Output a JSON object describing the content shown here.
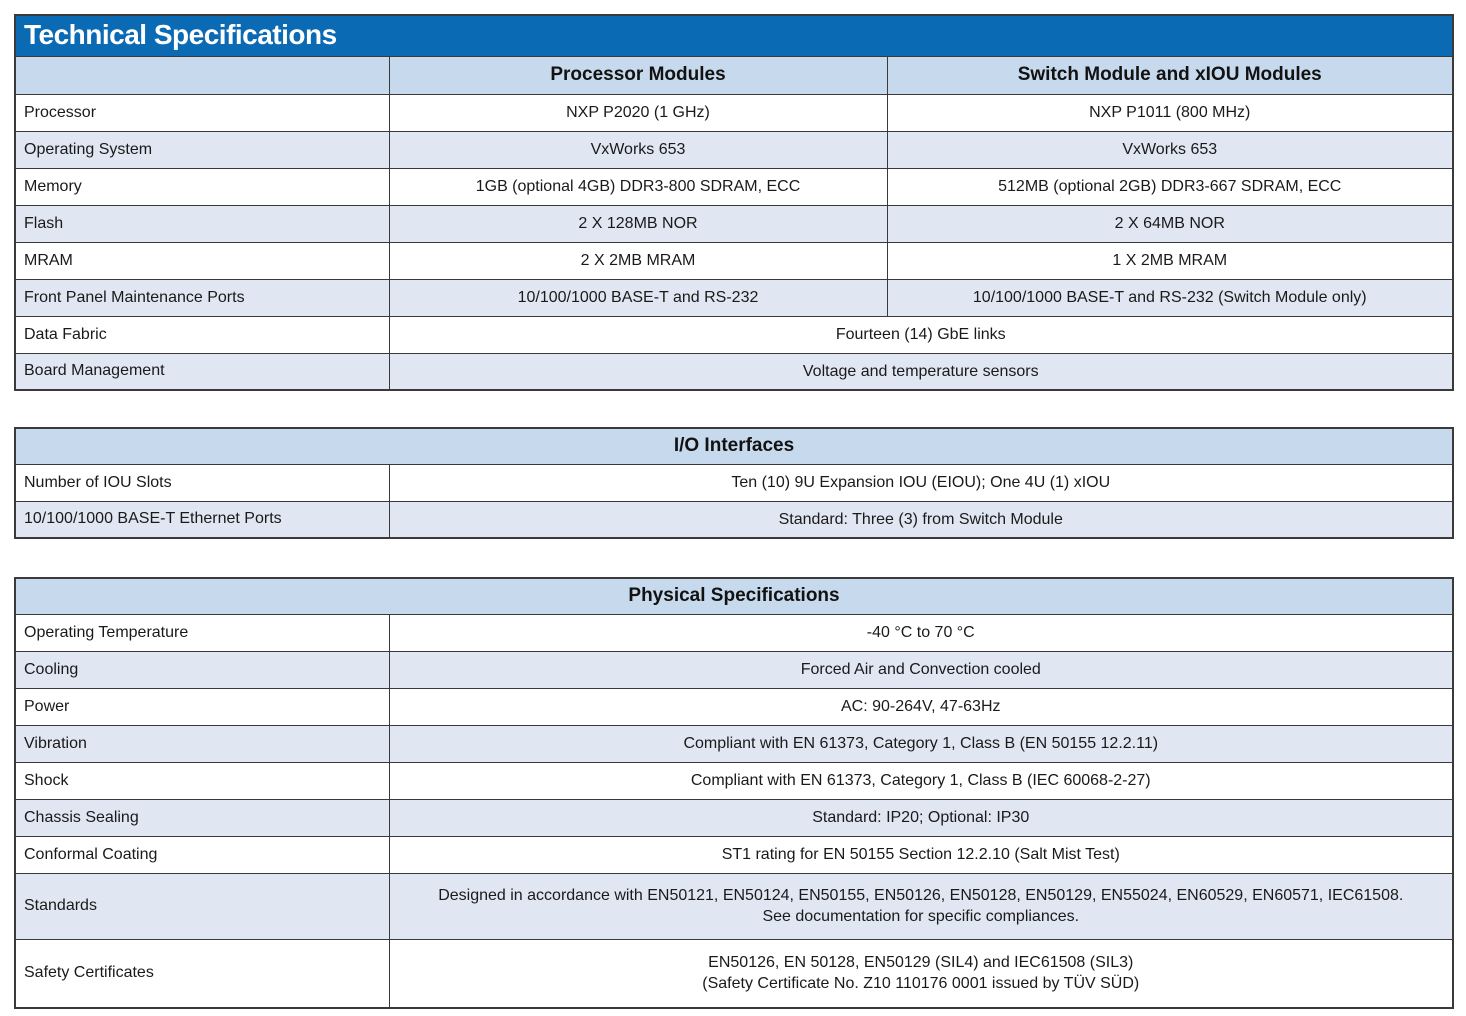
{
  "colors": {
    "title-bar-bg": "#0a6ab4",
    "title-bar-text": "#ffffff",
    "header-bg": "#c7d9ed",
    "alt-row-bg": "#e0e6f2",
    "border": "#3a3a3a",
    "text": "#1a1a1a"
  },
  "technical_specifications": {
    "title": "Technical Specifications",
    "columns": [
      "",
      "Processor Modules",
      "Switch Module and xIOU Modules"
    ],
    "rows": [
      {
        "label": "Processor",
        "cells": [
          "NXP P2020 (1 GHz)",
          "NXP P1011 (800 MHz)"
        ]
      },
      {
        "label": "Operating System",
        "cells": [
          "VxWorks 653",
          "VxWorks 653"
        ]
      },
      {
        "label": "Memory",
        "cells": [
          "1GB (optional 4GB) DDR3-800 SDRAM, ECC",
          "512MB (optional 2GB) DDR3-667 SDRAM, ECC"
        ]
      },
      {
        "label": "Flash",
        "cells": [
          "2 X 128MB NOR",
          "2 X 64MB NOR"
        ]
      },
      {
        "label": "MRAM",
        "cells": [
          "2 X 2MB MRAM",
          "1 X 2MB MRAM"
        ]
      },
      {
        "label": "Front Panel Maintenance Ports",
        "cells": [
          "10/100/1000 BASE-T and RS-232",
          "10/100/1000 BASE-T and RS-232 (Switch Module only)"
        ]
      },
      {
        "label": "Data Fabric",
        "cells": [
          "Fourteen (14) GbE links"
        ]
      },
      {
        "label": "Board Management",
        "cells": [
          "Voltage and temperature sensors"
        ]
      }
    ]
  },
  "io_interfaces": {
    "title": "I/O Interfaces",
    "rows": [
      {
        "label": "Number of IOU Slots",
        "value": "Ten (10) 9U Expansion IOU (EIOU); One 4U (1) xIOU"
      },
      {
        "label": "10/100/1000 BASE-T Ethernet Ports",
        "value": "Standard: Three (3) from Switch Module"
      }
    ]
  },
  "physical_specifications": {
    "title": "Physical Specifications",
    "rows": [
      {
        "label": "Operating Temperature",
        "value": "-40 °C to 70 °C"
      },
      {
        "label": "Cooling",
        "value": "Forced Air and Convection cooled"
      },
      {
        "label": "Power",
        "value": "AC: 90-264V, 47-63Hz"
      },
      {
        "label": "Vibration",
        "value": "Compliant with EN 61373, Category 1, Class B (EN 50155 12.2.11)"
      },
      {
        "label": "Shock",
        "value": "Compliant with EN 61373, Category 1, Class B (IEC 60068-2-27)"
      },
      {
        "label": "Chassis Sealing",
        "value": "Standard: IP20; Optional: IP30"
      },
      {
        "label": "Conformal Coating",
        "value": "ST1 rating for EN 50155 Section 12.2.10 (Salt Mist Test)"
      },
      {
        "label": "Standards",
        "value": "Designed in accordance with EN50121, EN50124, EN50155, EN50126, EN50128, EN50129, EN55024, EN60529, EN60571, IEC61508.\nSee documentation for specific compliances."
      },
      {
        "label": "Safety Certificates",
        "value": "EN50126, EN 50128, EN50129 (SIL4) and IEC61508 (SIL3)\n(Safety Certificate No. Z10 110176 0001 issued by TÜV SÜD)"
      }
    ]
  }
}
